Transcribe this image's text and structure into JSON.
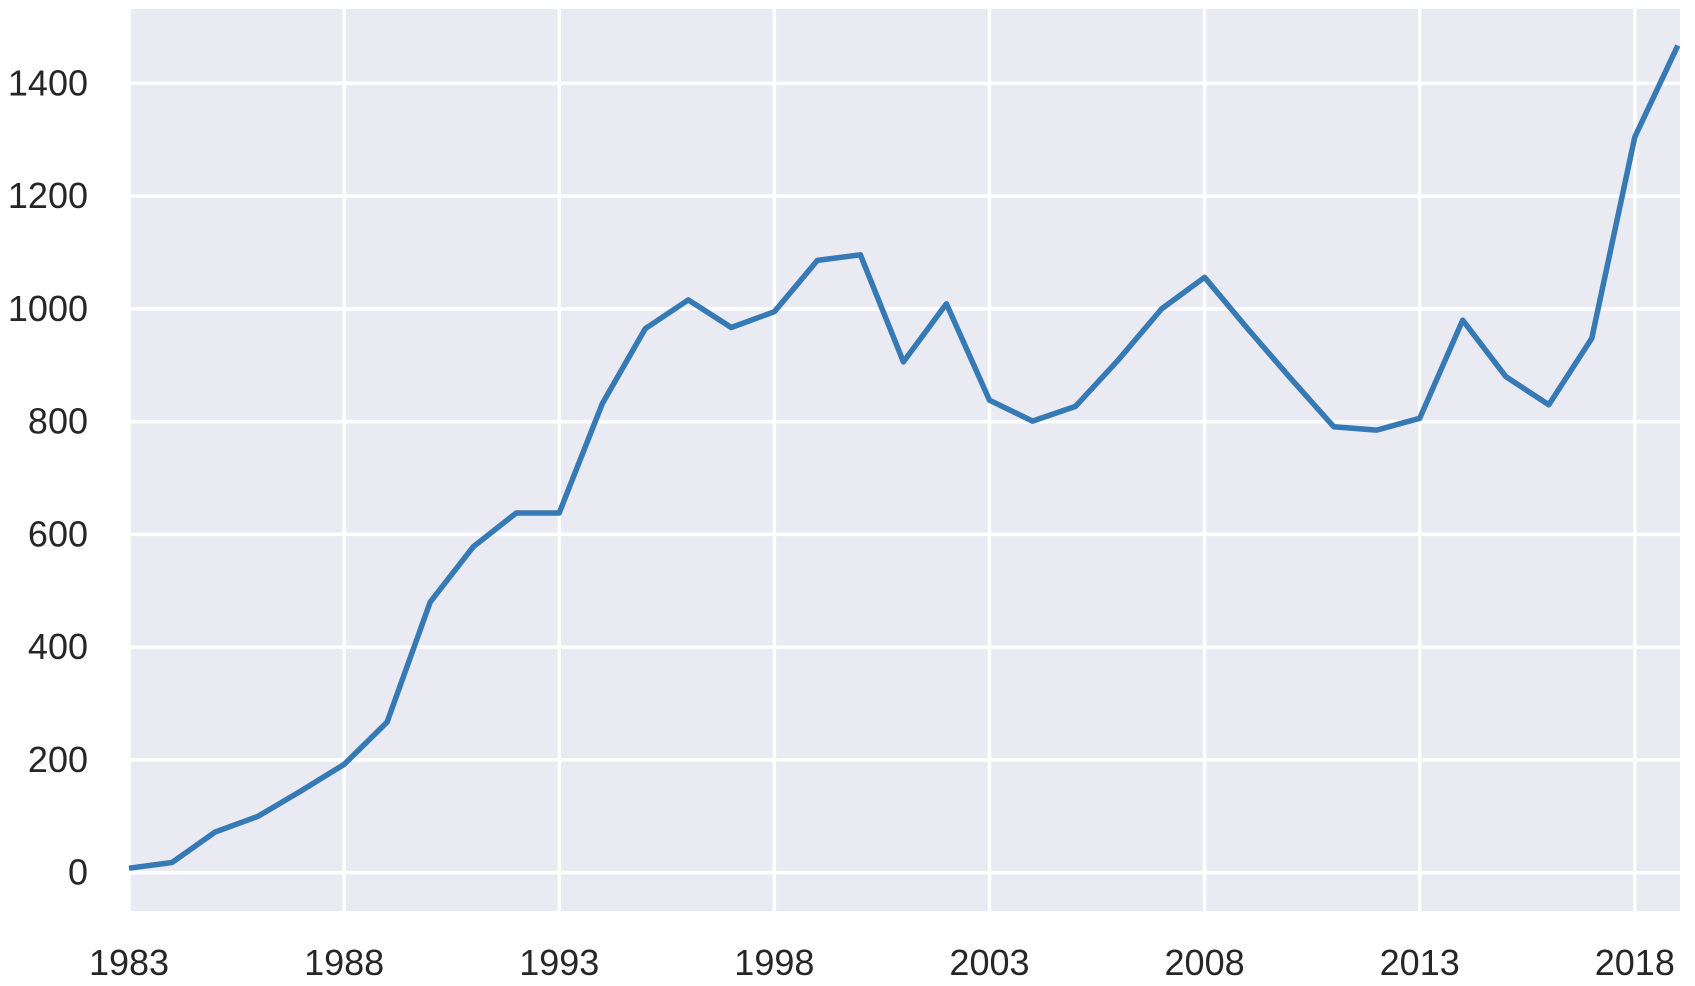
{
  "chart_data": {
    "type": "line",
    "title": "",
    "xlabel": "",
    "ylabel": "",
    "x": [
      1983,
      1984,
      1985,
      1986,
      1987,
      1988,
      1989,
      1990,
      1991,
      1992,
      1993,
      1994,
      1995,
      1996,
      1997,
      1998,
      1999,
      2000,
      2001,
      2002,
      2003,
      2004,
      2005,
      2006,
      2007,
      2008,
      2009,
      2010,
      2011,
      2012,
      2013,
      2014,
      2015,
      2016,
      2017,
      2018,
      2019
    ],
    "values": [
      8,
      18,
      72,
      100,
      145,
      192,
      267,
      480,
      578,
      638,
      638,
      832,
      965,
      1016,
      967,
      995,
      1086,
      1096,
      906,
      1009,
      838,
      801,
      827,
      910,
      1000,
      1056,
      965,
      877,
      791,
      785,
      806,
      980,
      880,
      830,
      948,
      1305,
      1467
    ],
    "xtick_labels": [
      "1983",
      "1988",
      "1993",
      "1998",
      "2003",
      "2008",
      "2013",
      "2018"
    ],
    "xticks": [
      1983,
      1988,
      1993,
      1998,
      2003,
      2008,
      2013,
      2018
    ],
    "ytick_labels": [
      "0",
      "200",
      "400",
      "600",
      "800",
      "1000",
      "1200",
      "1400"
    ],
    "yticks": [
      0,
      200,
      400,
      600,
      800,
      1000,
      1200,
      1400
    ],
    "xlim": [
      1983,
      2019.05
    ],
    "ylim": [
      -68,
      1532
    ],
    "grid": true,
    "legend": null,
    "colors": {
      "line": "#3579b5",
      "plot_background": "#eaeaf2",
      "figure_background": "#ffffff",
      "gridline": "#ffffff",
      "tick_text": "#262626"
    }
  }
}
